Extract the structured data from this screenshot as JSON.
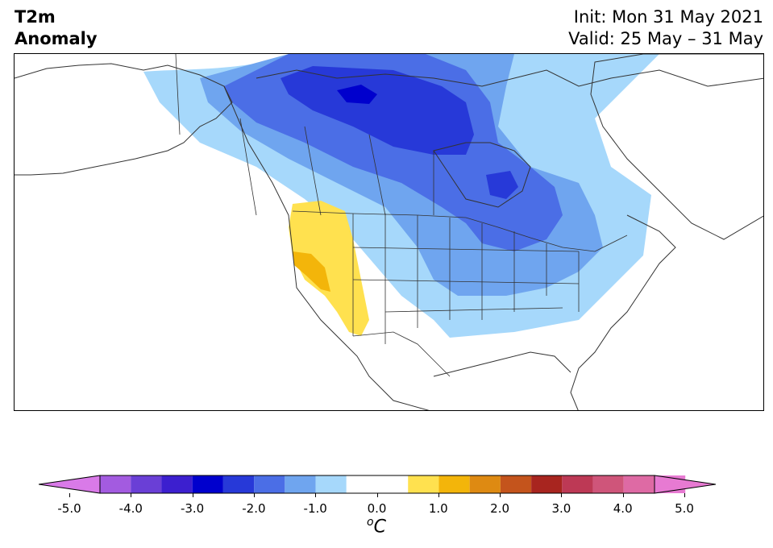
{
  "header": {
    "title_line1": "T2m",
    "title_line2": "Anomaly",
    "init_line": "Init: Mon 31 May 2021",
    "valid_line": "Valid: 25 May – 31 May"
  },
  "map": {
    "region": "North America",
    "variable": "2 m temperature anomaly",
    "anomaly_colors": {
      "minus_3": "#0000cd",
      "minus_2_5": "#2739d8",
      "minus_2": "#4b6ee6",
      "minus_1_5": "#6fa5ef",
      "minus_1": "#a6d8fb",
      "plus_1": "#ffe14f",
      "plus_1_5": "#f3b50a"
    },
    "background_color": "#ffffff",
    "border_color": "#333333"
  },
  "colorbar": {
    "unit_base": "C",
    "unit_superscript": "o",
    "ticks": [
      "-5.0",
      "-4.0",
      "-3.0",
      "-2.0",
      "-1.0",
      "0.0",
      "1.0",
      "2.0",
      "3.0",
      "4.0",
      "5.0"
    ],
    "bounds": [
      -5.0,
      -4.5,
      -4.0,
      -3.5,
      -3.0,
      -2.5,
      -2.0,
      -1.5,
      -1.0,
      -0.5,
      0.5,
      1.0,
      1.5,
      2.0,
      2.5,
      3.0,
      3.5,
      4.0,
      4.5,
      5.0
    ],
    "colors": [
      "#d97ae8",
      "#a35be0",
      "#6a3fd6",
      "#3c1fcf",
      "#0000cd",
      "#2739d8",
      "#4b6ee6",
      "#6fa5ef",
      "#a6d8fb",
      "#ffffff",
      "#ffe14f",
      "#f3b50a",
      "#de8a12",
      "#c4541c",
      "#a8251f",
      "#bd3955",
      "#cf557a",
      "#de6aa4",
      "#e77ad2"
    ],
    "extend_low_color": "#d97ae8",
    "extend_high_color": "#e77ad2"
  }
}
